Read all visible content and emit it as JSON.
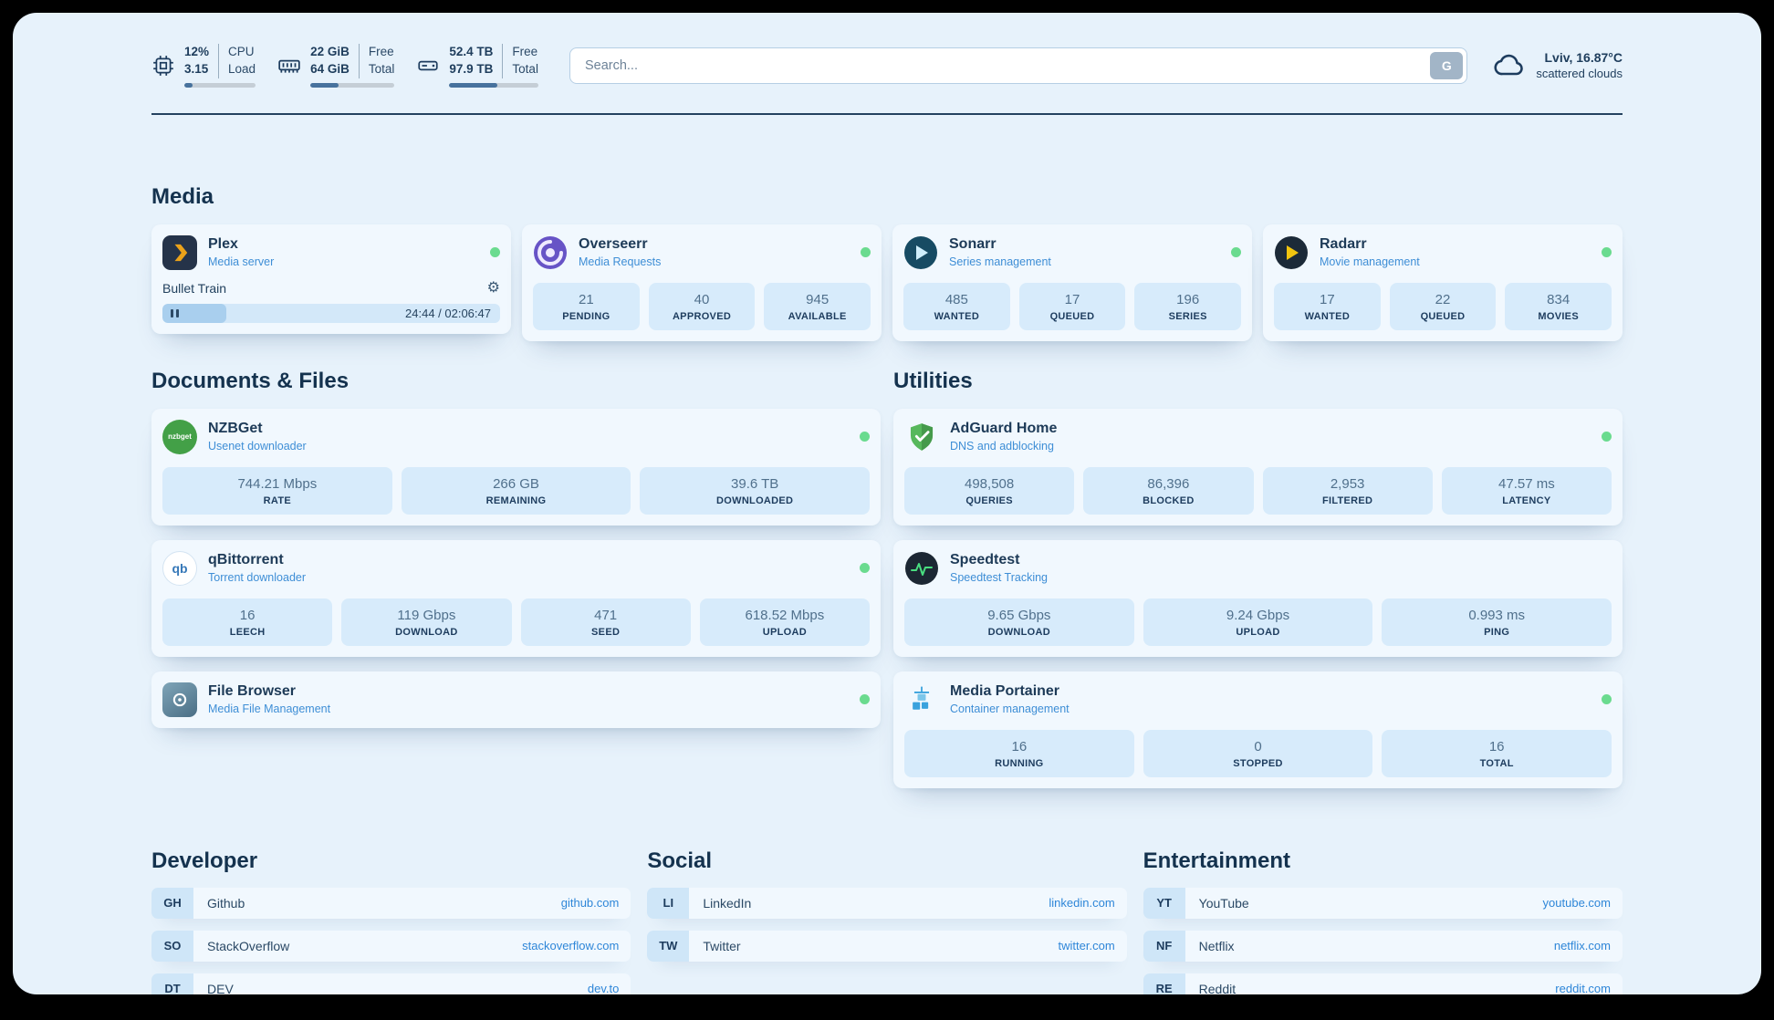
{
  "colors": {
    "accent": "#2e86d8",
    "status_online": "#6adb8f",
    "page_bg": "#e7f2fb",
    "stat_box_bg": "#d7ebfb"
  },
  "icons": {
    "gear": "⚙"
  },
  "topbar": {
    "cpu": {
      "values": [
        "12%",
        "3.15"
      ],
      "labels": [
        "CPU",
        "Load"
      ],
      "percent": 12
    },
    "ram": {
      "values": [
        "22 GiB",
        "64 GiB"
      ],
      "labels": [
        "Free",
        "Total"
      ],
      "percent": 34
    },
    "disk": {
      "values": [
        "52.4 TB",
        "97.9 TB"
      ],
      "labels": [
        "Free",
        "Total"
      ],
      "percent": 54
    },
    "search": {
      "placeholder": "Search...",
      "button_label": "G"
    },
    "weather": {
      "location": "Lviv, 16.87°C",
      "condition": "scattered clouds"
    }
  },
  "media": {
    "title": "Media",
    "plex": {
      "name": "Plex",
      "subtitle": "Media server",
      "player": {
        "title": "Bullet Train",
        "time": "24:44 / 02:06:47",
        "percent": 19
      }
    },
    "overseerr": {
      "name": "Overseerr",
      "subtitle": "Media Requests",
      "stats": [
        {
          "value": "21",
          "label": "PENDING"
        },
        {
          "value": "40",
          "label": "APPROVED"
        },
        {
          "value": "945",
          "label": "AVAILABLE"
        }
      ]
    },
    "sonarr": {
      "name": "Sonarr",
      "subtitle": "Series management",
      "stats": [
        {
          "value": "485",
          "label": "WANTED"
        },
        {
          "value": "17",
          "label": "QUEUED"
        },
        {
          "value": "196",
          "label": "SERIES"
        }
      ]
    },
    "radarr": {
      "name": "Radarr",
      "subtitle": "Movie management",
      "stats": [
        {
          "value": "17",
          "label": "WANTED"
        },
        {
          "value": "22",
          "label": "QUEUED"
        },
        {
          "value": "834",
          "label": "MOVIES"
        }
      ]
    }
  },
  "documents": {
    "title": "Documents & Files",
    "nzbget": {
      "name": "NZBGet",
      "subtitle": "Usenet downloader",
      "icon_text": "nzbget",
      "stats": [
        {
          "value": "744.21 Mbps",
          "label": "RATE"
        },
        {
          "value": "266 GB",
          "label": "REMAINING"
        },
        {
          "value": "39.6 TB",
          "label": "DOWNLOADED"
        }
      ]
    },
    "qbittorrent": {
      "name": "qBittorrent",
      "subtitle": "Torrent downloader",
      "icon_text": "qb",
      "stats": [
        {
          "value": "16",
          "label": "LEECH"
        },
        {
          "value": "119 Gbps",
          "label": "DOWNLOAD"
        },
        {
          "value": "471",
          "label": "SEED"
        },
        {
          "value": "618.52 Mbps",
          "label": "UPLOAD"
        }
      ]
    },
    "filebrowser": {
      "name": "File Browser",
      "subtitle": "Media File Management"
    }
  },
  "utilities": {
    "title": "Utilities",
    "adguard": {
      "name": "AdGuard Home",
      "subtitle": "DNS and adblocking",
      "stats": [
        {
          "value": "498,508",
          "label": "QUERIES"
        },
        {
          "value": "86,396",
          "label": "BLOCKED"
        },
        {
          "value": "2,953",
          "label": "FILTERED"
        },
        {
          "value": "47.57 ms",
          "label": "LATENCY"
        }
      ]
    },
    "speedtest": {
      "name": "Speedtest",
      "subtitle": "Speedtest Tracking",
      "stats": [
        {
          "value": "9.65 Gbps",
          "label": "DOWNLOAD"
        },
        {
          "value": "9.24 Gbps",
          "label": "UPLOAD"
        },
        {
          "value": "0.993 ms",
          "label": "PING"
        }
      ]
    },
    "portainer": {
      "name": "Media Portainer",
      "subtitle": "Container management",
      "stats": [
        {
          "value": "16",
          "label": "RUNNING"
        },
        {
          "value": "0",
          "label": "STOPPED"
        },
        {
          "value": "16",
          "label": "TOTAL"
        }
      ]
    }
  },
  "bookmarks": [
    {
      "title": "Developer",
      "items": [
        {
          "abbr": "GH",
          "name": "Github",
          "url": "github.com"
        },
        {
          "abbr": "SO",
          "name": "StackOverflow",
          "url": "stackoverflow.com"
        },
        {
          "abbr": "DT",
          "name": "DEV",
          "url": "dev.to"
        }
      ]
    },
    {
      "title": "Social",
      "items": [
        {
          "abbr": "LI",
          "name": "LinkedIn",
          "url": "linkedin.com"
        },
        {
          "abbr": "TW",
          "name": "Twitter",
          "url": "twitter.com"
        }
      ]
    },
    {
      "title": "Entertainment",
      "items": [
        {
          "abbr": "YT",
          "name": "YouTube",
          "url": "youtube.com"
        },
        {
          "abbr": "NF",
          "name": "Netflix",
          "url": "netflix.com"
        },
        {
          "abbr": "RE",
          "name": "Reddit",
          "url": "reddit.com"
        }
      ]
    }
  ]
}
